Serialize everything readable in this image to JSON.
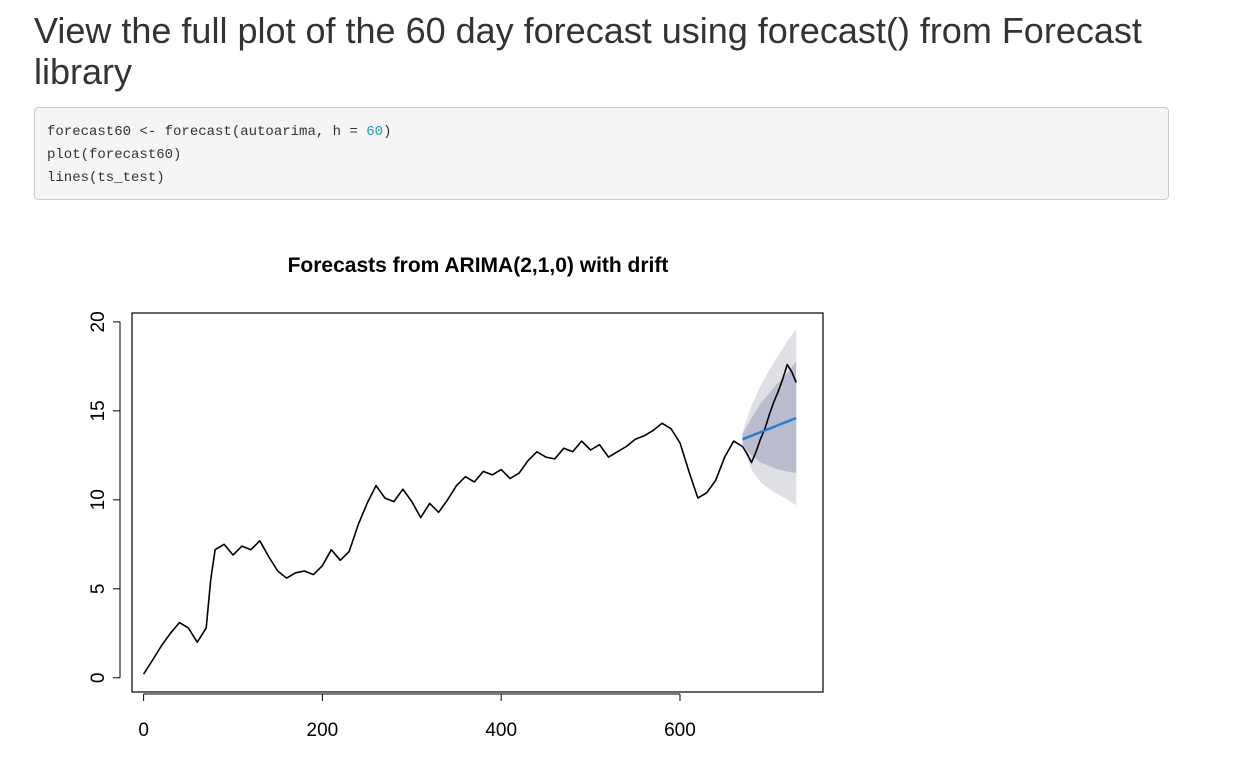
{
  "heading": "View the full plot of the 60 day forecast using forecast() from Forecast library",
  "code": {
    "lines": [
      {
        "pre": "forecast60 <- forecast(autoarima, h = ",
        "num": "60",
        "post": ")"
      },
      {
        "pre": "plot(forecast60)",
        "num": "",
        "post": ""
      },
      {
        "pre": "lines(ts_test)",
        "num": "",
        "post": ""
      }
    ],
    "number_color": "#1f9bb2"
  },
  "chart_data": {
    "type": "line",
    "title": "Forecasts from ARIMA(2,1,0) with drift",
    "xlabel": "",
    "ylabel": "",
    "xlim": [
      -13,
      760
    ],
    "ylim": [
      -0.8,
      20.5
    ],
    "x_ticks": [
      0,
      200,
      400,
      600
    ],
    "x_tick_labels": [
      "0",
      "200",
      "400",
      "600"
    ],
    "y_ticks": [
      0,
      5,
      10,
      15,
      20
    ],
    "y_tick_labels": [
      "0",
      "5",
      "10",
      "15",
      "20"
    ],
    "grid": false,
    "legend": "none",
    "series": [
      {
        "role": "observed",
        "color": "#000000",
        "x": [
          0,
          10,
          20,
          30,
          40,
          50,
          60,
          70,
          75,
          80,
          90,
          100,
          110,
          120,
          130,
          140,
          150,
          160,
          170,
          180,
          190,
          200,
          210,
          220,
          230,
          240,
          250,
          260,
          270,
          280,
          290,
          300,
          310,
          320,
          330,
          340,
          350,
          360,
          370,
          380,
          390,
          400,
          410,
          420,
          430,
          440,
          450,
          460,
          470,
          480,
          490,
          500,
          510,
          520,
          530,
          540,
          550,
          560,
          570,
          580,
          590,
          600,
          610,
          620,
          630,
          640,
          650,
          660,
          670
        ],
        "y": [
          0.2,
          1.0,
          1.8,
          2.5,
          3.1,
          2.8,
          2.0,
          2.8,
          5.5,
          7.2,
          7.5,
          6.9,
          7.4,
          7.2,
          7.7,
          6.8,
          6.0,
          5.6,
          5.9,
          6.0,
          5.8,
          6.3,
          7.2,
          6.6,
          7.1,
          8.6,
          9.8,
          10.8,
          10.1,
          9.9,
          10.6,
          9.9,
          9.0,
          9.8,
          9.3,
          10.0,
          10.8,
          11.3,
          11.0,
          11.6,
          11.4,
          11.7,
          11.2,
          11.5,
          12.2,
          12.7,
          12.4,
          12.3,
          12.9,
          12.7,
          13.3,
          12.8,
          13.1,
          12.4,
          12.7,
          13.0,
          13.4,
          13.6,
          13.9,
          14.3,
          14.0,
          13.2,
          11.6,
          10.1,
          10.4,
          11.1,
          12.4,
          13.3,
          13.0
        ]
      },
      {
        "role": "test",
        "color": "#000000",
        "x": [
          670,
          675,
          680,
          685,
          690,
          695,
          700,
          705,
          710,
          715,
          720,
          725,
          730
        ],
        "y": [
          13.0,
          12.6,
          12.1,
          12.7,
          13.4,
          14.0,
          14.8,
          15.5,
          16.1,
          16.8,
          17.6,
          17.2,
          16.6
        ]
      },
      {
        "role": "forecast-mean",
        "color": "#2b7bd6",
        "x": [
          670,
          730
        ],
        "y": [
          13.4,
          14.6
        ]
      }
    ],
    "bands": [
      {
        "level": "95%",
        "color": "#dfdfe6",
        "x": [
          670,
          680,
          690,
          700,
          710,
          720,
          730
        ],
        "upper": [
          13.8,
          15.3,
          16.4,
          17.3,
          18.1,
          18.9,
          19.6
        ],
        "lower": [
          13.0,
          11.7,
          11.0,
          10.6,
          10.3,
          10.0,
          9.7
        ]
      },
      {
        "level": "80%",
        "color": "#b9bccf",
        "x": [
          670,
          680,
          690,
          700,
          710,
          720,
          730
        ],
        "upper": [
          13.7,
          14.6,
          15.4,
          16.0,
          16.6,
          17.1,
          17.8
        ],
        "lower": [
          13.1,
          12.5,
          12.1,
          11.9,
          11.7,
          11.6,
          11.5
        ]
      }
    ]
  }
}
